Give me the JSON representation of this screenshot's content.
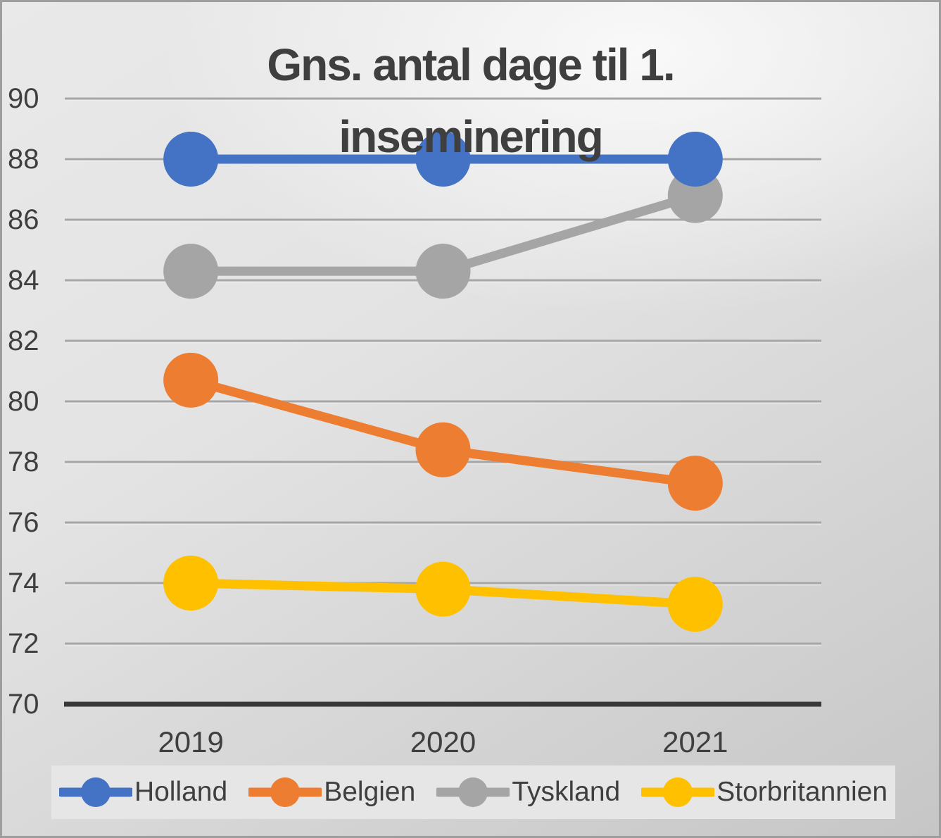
{
  "chart_data": {
    "type": "line",
    "title": "Gns. antal dage til 1. inseminering",
    "title_lines": [
      "Gns. antal dage til 1.",
      "inseminering"
    ],
    "categories": [
      "2019",
      "2020",
      "2021"
    ],
    "series": [
      {
        "name": "Holland",
        "color": "#4472C4",
        "values": [
          88.0,
          88.0,
          88.0
        ]
      },
      {
        "name": "Belgien",
        "color": "#ED7D31",
        "values": [
          80.7,
          78.4,
          77.3
        ]
      },
      {
        "name": "Tyskland",
        "color": "#A5A5A5",
        "values": [
          84.3,
          84.3,
          86.8
        ]
      },
      {
        "name": "Storbritannien",
        "color": "#FFC000",
        "values": [
          74.0,
          73.8,
          73.3
        ]
      }
    ],
    "ylim": [
      70,
      90
    ],
    "y_tick_step": 2,
    "y_tick_labels": [
      "70",
      "72",
      "74",
      "76",
      "78",
      "80",
      "82",
      "84",
      "86",
      "88",
      "90"
    ],
    "grid": "horizontal-only",
    "legend_position": "bottom",
    "colors": {
      "text": "#3f3f3f",
      "gridline": "#a6a6a6",
      "gridline_highlight": "#f2f2f2",
      "axis_line": "#383838",
      "legend_background": "#e6e6e6"
    }
  }
}
